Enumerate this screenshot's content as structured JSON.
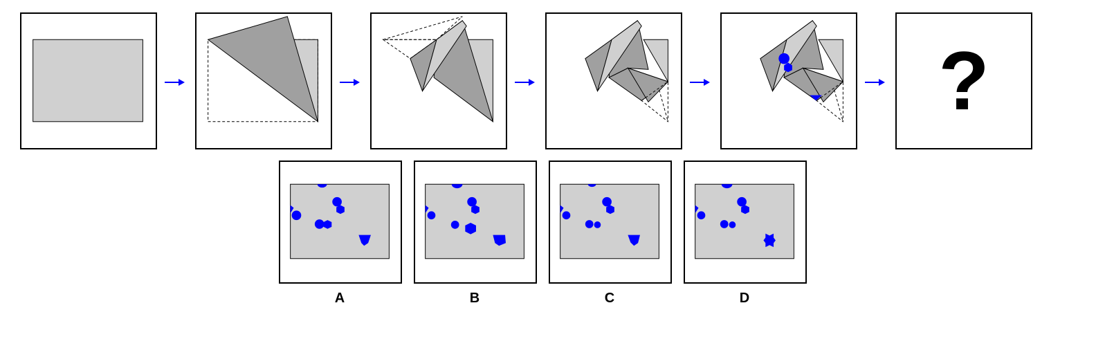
{
  "sequence": {
    "unknown_symbol": "?"
  },
  "options": [
    {
      "label": "A"
    },
    {
      "label": "B"
    },
    {
      "label": "C"
    },
    {
      "label": "D"
    }
  ],
  "colors": {
    "paper": "#d0d0d0",
    "fold_dark": "#a0a0a0",
    "fold_light": "#d0d0d0",
    "hole": "#0000ff",
    "arrow": "#0000ff",
    "outline": "#000000"
  }
}
